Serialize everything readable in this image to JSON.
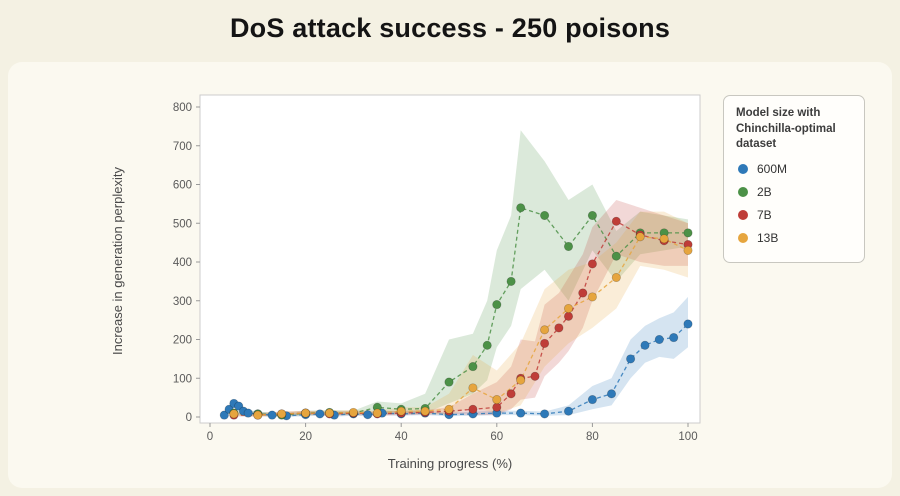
{
  "page": {
    "title": "DoS attack success - 250 poisons"
  },
  "chart_data": {
    "type": "line",
    "title": "DoS attack success - 250 poisons",
    "xlabel": "Training progress (%)",
    "ylabel": "Increase in generation perplexity",
    "xlim": [
      0,
      100
    ],
    "ylim": [
      0,
      800
    ],
    "xticks": [
      0,
      20,
      40,
      60,
      80,
      100
    ],
    "yticks": [
      0,
      100,
      200,
      300,
      400,
      500,
      600,
      700,
      800
    ],
    "grid": false,
    "legend_position": "right",
    "legend_title": "Model size with Chinchilla-optimal dataset",
    "series": [
      {
        "name": "600M",
        "color": "#2e79b8",
        "x": [
          3,
          4,
          5,
          6,
          7,
          8,
          10,
          13,
          16,
          20,
          23,
          26,
          30,
          33,
          36,
          40,
          45,
          50,
          55,
          60,
          65,
          70,
          75,
          80,
          84,
          88,
          91,
          94,
          97,
          100
        ],
        "y": [
          5,
          20,
          35,
          28,
          15,
          10,
          8,
          5,
          3,
          6,
          8,
          5,
          8,
          6,
          10,
          8,
          10,
          6,
          8,
          10,
          10,
          8,
          15,
          45,
          60,
          150,
          185,
          200,
          205,
          240
        ],
        "band_low": [
          0,
          10,
          25,
          18,
          8,
          4,
          3,
          0,
          0,
          2,
          3,
          1,
          3,
          2,
          5,
          3,
          5,
          2,
          3,
          5,
          5,
          3,
          5,
          20,
          30,
          100,
          140,
          155,
          150,
          180
        ],
        "band_high": [
          12,
          30,
          45,
          38,
          25,
          18,
          14,
          10,
          8,
          11,
          14,
          10,
          14,
          11,
          16,
          14,
          16,
          11,
          14,
          16,
          16,
          14,
          30,
          80,
          100,
          200,
          235,
          255,
          270,
          310
        ]
      },
      {
        "name": "2B",
        "color": "#4c9147",
        "x": [
          5,
          10,
          15,
          20,
          25,
          30,
          35,
          40,
          45,
          50,
          55,
          58,
          60,
          63,
          65,
          70,
          75,
          80,
          85,
          90,
          95,
          100
        ],
        "y": [
          10,
          8,
          5,
          10,
          12,
          10,
          25,
          20,
          22,
          90,
          130,
          185,
          290,
          350,
          540,
          520,
          440,
          520,
          415,
          475,
          475,
          475
        ],
        "band_low": [
          5,
          3,
          1,
          5,
          6,
          5,
          12,
          10,
          10,
          35,
          60,
          95,
          180,
          235,
          330,
          380,
          300,
          430,
          350,
          420,
          430,
          440
        ],
        "band_high": [
          16,
          14,
          10,
          16,
          18,
          16,
          40,
          35,
          60,
          200,
          215,
          300,
          430,
          520,
          740,
          660,
          560,
          600,
          480,
          530,
          520,
          510
        ]
      },
      {
        "name": "7B",
        "color": "#bf3d38",
        "x": [
          5,
          10,
          15,
          20,
          25,
          30,
          35,
          40,
          45,
          50,
          55,
          60,
          63,
          65,
          68,
          70,
          73,
          75,
          78,
          80,
          85,
          90,
          95,
          100
        ],
        "y": [
          5,
          5,
          8,
          10,
          8,
          10,
          8,
          10,
          12,
          15,
          20,
          25,
          60,
          100,
          105,
          190,
          230,
          260,
          320,
          395,
          505,
          470,
          455,
          445
        ],
        "band_low": [
          1,
          1,
          3,
          5,
          3,
          5,
          3,
          5,
          6,
          8,
          5,
          5,
          20,
          45,
          50,
          105,
          140,
          170,
          230,
          300,
          420,
          400,
          390,
          390
        ],
        "band_high": [
          10,
          10,
          14,
          16,
          14,
          16,
          14,
          16,
          18,
          25,
          60,
          90,
          130,
          200,
          195,
          290,
          320,
          360,
          420,
          490,
          560,
          540,
          520,
          500
        ]
      },
      {
        "name": "13B",
        "color": "#e6a53e",
        "x": [
          5,
          10,
          15,
          20,
          25,
          30,
          35,
          40,
          45,
          50,
          55,
          60,
          65,
          70,
          75,
          80,
          85,
          90,
          95,
          100
        ],
        "y": [
          8,
          5,
          8,
          10,
          10,
          12,
          10,
          15,
          15,
          20,
          75,
          45,
          95,
          225,
          280,
          310,
          360,
          465,
          460,
          430
        ],
        "band_low": [
          3,
          1,
          3,
          5,
          5,
          6,
          5,
          8,
          8,
          5,
          25,
          10,
          30,
          130,
          190,
          230,
          280,
          390,
          380,
          360
        ],
        "band_high": [
          14,
          10,
          14,
          16,
          16,
          18,
          16,
          25,
          25,
          60,
          160,
          120,
          190,
          330,
          380,
          400,
          450,
          530,
          530,
          500
        ]
      }
    ]
  }
}
